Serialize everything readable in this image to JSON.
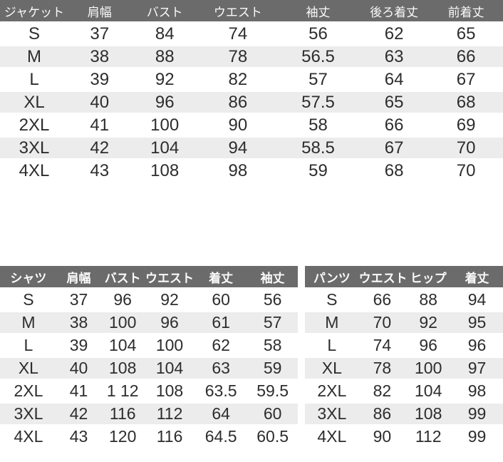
{
  "colors": {
    "header_bg": "#6b6b6b",
    "header_text": "#fafafa",
    "row_stripe_bg": "#ececec",
    "row_bg": "#ffffff",
    "value_text": "#2d2d2d"
  },
  "jacket_table": {
    "title": "ジャケット",
    "headers": [
      "ジャケット",
      "肩幅",
      "バスト",
      "ウエスト",
      "袖丈",
      "後ろ着丈",
      "前着丈"
    ],
    "rows": [
      [
        "S",
        "37",
        "84",
        "74",
        "56",
        "62",
        "65"
      ],
      [
        "M",
        "38",
        "88",
        "78",
        "56.5",
        "63",
        "66"
      ],
      [
        "L",
        "39",
        "92",
        "82",
        "57",
        "64",
        "67"
      ],
      [
        "XL",
        "40",
        "96",
        "86",
        "57.5",
        "65",
        "68"
      ],
      [
        "2XL",
        "41",
        "100",
        "90",
        "58",
        "66",
        "69"
      ],
      [
        "3XL",
        "42",
        "104",
        "94",
        "58.5",
        "67",
        "70"
      ],
      [
        "4XL",
        "43",
        "108",
        "98",
        "59",
        "68",
        "70"
      ]
    ]
  },
  "shirt_table": {
    "title": "シャツ",
    "headers": [
      "シャツ",
      "肩幅",
      "バスト",
      "ウエスト",
      "着丈",
      "袖丈"
    ],
    "rows": [
      [
        "S",
        "37",
        "96",
        "92",
        "60",
        "56"
      ],
      [
        "M",
        "38",
        "100",
        "96",
        "61",
        "57"
      ],
      [
        "L",
        "39",
        "104",
        "100",
        "62",
        "58"
      ],
      [
        "XL",
        "40",
        "108",
        "104",
        "63",
        "59"
      ],
      [
        "2XL",
        "41",
        "1 12",
        "108",
        "63.5",
        "59.5"
      ],
      [
        "3XL",
        "42",
        "116",
        "112",
        "64",
        "60"
      ],
      [
        "4XL",
        "43",
        "120",
        "116",
        "64.5",
        "60.5"
      ]
    ]
  },
  "pants_table": {
    "title": "パンツ",
    "headers": [
      "パンツ",
      "ウエスト",
      "ヒップ",
      "着丈"
    ],
    "rows": [
      [
        "S",
        "66",
        "88",
        "94"
      ],
      [
        "M",
        "70",
        "92",
        "95"
      ],
      [
        "L",
        "74",
        "96",
        "96"
      ],
      [
        "XL",
        "78",
        "100",
        "97"
      ],
      [
        "2XL",
        "82",
        "104",
        "98"
      ],
      [
        "3XL",
        "86",
        "108",
        "99"
      ],
      [
        "4XL",
        "90",
        "112",
        "99"
      ]
    ]
  }
}
